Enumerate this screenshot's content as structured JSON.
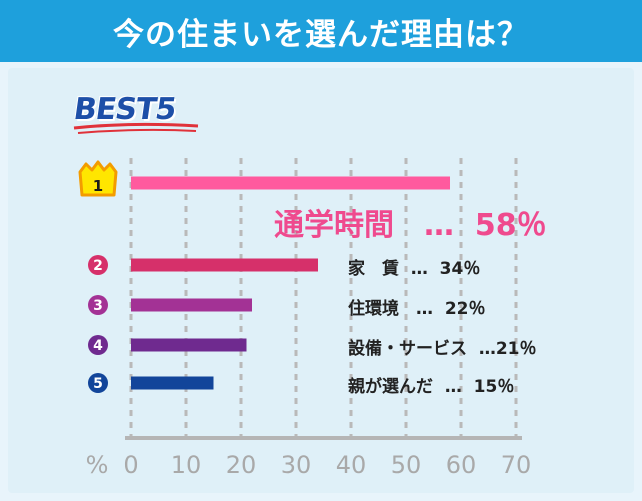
{
  "header": {
    "title": "今の住まいを選んだ理由は？"
  },
  "badge": {
    "text": "BEST5"
  },
  "chart_data": {
    "type": "bar",
    "orientation": "horizontal",
    "ranks": [
      "1",
      "2",
      "3",
      "4",
      "5"
    ],
    "categories": [
      "通学時間",
      "家　賃",
      "住環境",
      "設備・サービス",
      "親が選んだ"
    ],
    "values": [
      58,
      34,
      22,
      21,
      15
    ],
    "labels": [
      "通学時間　…  58％",
      "家　賃  …  34％",
      "住環境　…  22％",
      "設備・サービス  …21％",
      "親が選んだ  …  15％"
    ],
    "x_unit": "%",
    "x_ticks": [
      0,
      10,
      20,
      30,
      40,
      50,
      60,
      70
    ],
    "xlim": [
      0,
      70
    ],
    "grid": "vertical dashed",
    "bar_colors": [
      "#ff5a9e",
      "#d6306a",
      "#a33295",
      "#6f2a8f",
      "#12459a"
    ]
  }
}
